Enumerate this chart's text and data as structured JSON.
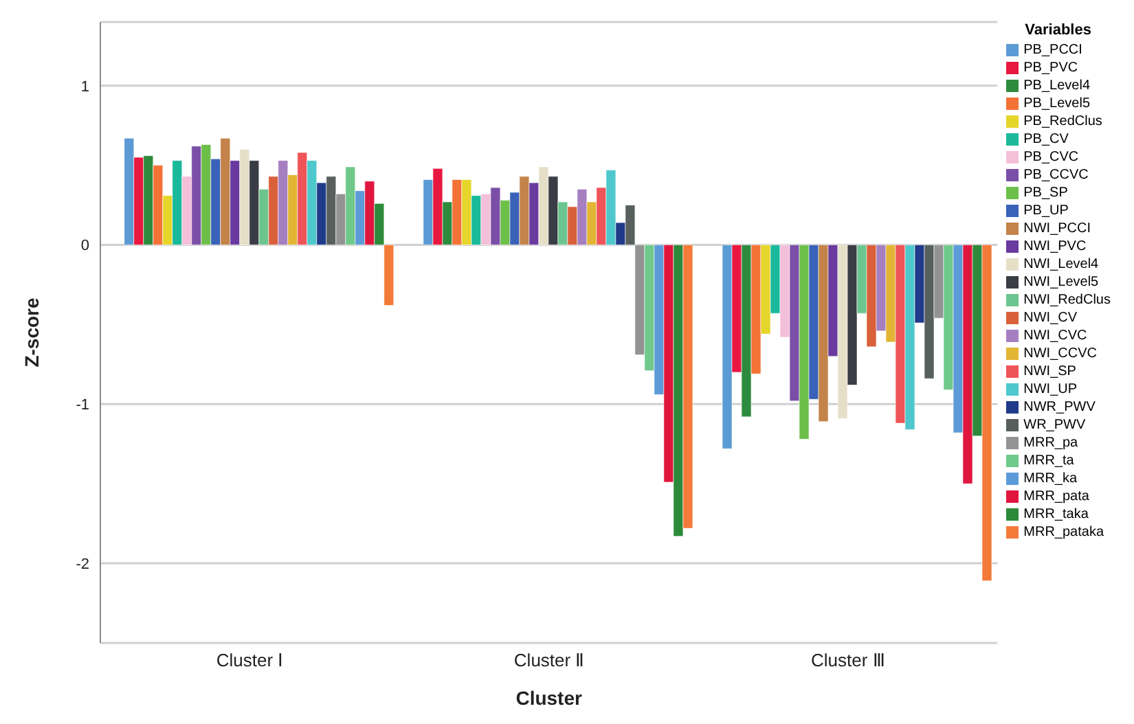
{
  "chart_data": {
    "type": "bar",
    "xlabel": "Cluster",
    "ylabel": "Z-score",
    "legend_title": "Variables",
    "categories": [
      "Cluster Ⅰ",
      "Cluster Ⅱ",
      "Cluster Ⅲ"
    ],
    "ylim": [
      -2.5,
      1.4
    ],
    "yticks": [
      -2,
      -1,
      0,
      1
    ],
    "grid": "y",
    "legend": "right",
    "series": [
      {
        "name": "PB_PCCI",
        "color": "#5b9bd5",
        "values": [
          0.67,
          0.41,
          -1.28
        ]
      },
      {
        "name": "PB_PVC",
        "color": "#e8173f",
        "values": [
          0.55,
          0.48,
          -0.8
        ]
      },
      {
        "name": "PB_Level4",
        "color": "#2e8b3e",
        "values": [
          0.56,
          0.27,
          -1.08
        ]
      },
      {
        "name": "PB_Level5",
        "color": "#f47236",
        "values": [
          0.5,
          0.41,
          -0.81
        ]
      },
      {
        "name": "PB_RedClus",
        "color": "#e6d52a",
        "values": [
          0.31,
          0.41,
          -0.56
        ]
      },
      {
        "name": "PB_CV",
        "color": "#1ab99b",
        "values": [
          0.53,
          0.31,
          -0.43
        ]
      },
      {
        "name": "PB_CVC",
        "color": "#f4bfd9",
        "values": [
          0.43,
          0.32,
          -0.58
        ]
      },
      {
        "name": "PB_CCVC",
        "color": "#7b4fa8",
        "values": [
          0.62,
          0.36,
          -0.98
        ]
      },
      {
        "name": "PB_SP",
        "color": "#6cc04a",
        "values": [
          0.63,
          0.28,
          -1.22
        ]
      },
      {
        "name": "PB_UP",
        "color": "#3a62b8",
        "values": [
          0.54,
          0.33,
          -0.97
        ]
      },
      {
        "name": "NWI_PCCI",
        "color": "#c4834a",
        "values": [
          0.67,
          0.43,
          -1.11
        ]
      },
      {
        "name": "NWI_PVC",
        "color": "#6a3a9e",
        "values": [
          0.53,
          0.39,
          -0.7
        ]
      },
      {
        "name": "NWI_Level4",
        "color": "#e6dfc8",
        "values": [
          0.6,
          0.49,
          -1.09
        ]
      },
      {
        "name": "NWI_Level5",
        "color": "#3a3d45",
        "values": [
          0.53,
          0.43,
          -0.88
        ]
      },
      {
        "name": "NWI_RedClus",
        "color": "#6cc58e",
        "values": [
          0.35,
          0.27,
          -0.43
        ]
      },
      {
        "name": "NWI_CV",
        "color": "#d9603b",
        "values": [
          0.43,
          0.24,
          -0.64
        ]
      },
      {
        "name": "NWI_CVC",
        "color": "#a67fc1",
        "values": [
          0.53,
          0.35,
          -0.54
        ]
      },
      {
        "name": "NWI_CCVC",
        "color": "#e2b534",
        "values": [
          0.44,
          0.27,
          -0.61
        ]
      },
      {
        "name": "NWI_SP",
        "color": "#ef5458",
        "values": [
          0.58,
          0.36,
          -1.12
        ]
      },
      {
        "name": "NWI_UP",
        "color": "#4ec8cc",
        "values": [
          0.53,
          0.47,
          -1.16
        ]
      },
      {
        "name": "NWR_PWV",
        "color": "#1f3a8a",
        "values": [
          0.39,
          0.14,
          -0.49
        ]
      },
      {
        "name": "WR_PWV",
        "color": "#58605e",
        "values": [
          0.43,
          0.25,
          -0.84
        ]
      },
      {
        "name": "MRR_pa",
        "color": "#939393",
        "values": [
          0.32,
          -0.69,
          -0.46
        ]
      },
      {
        "name": "MRR_ta",
        "color": "#6fc98a",
        "values": [
          0.49,
          -0.79,
          -0.91
        ]
      },
      {
        "name": "MRR_ka",
        "color": "#5c9bd8",
        "values": [
          0.34,
          -0.94,
          -1.18
        ]
      },
      {
        "name": "MRR_pata",
        "color": "#e0163e",
        "values": [
          0.4,
          -1.49,
          -1.5
        ]
      },
      {
        "name": "MRR_taka",
        "color": "#2c8a3a",
        "values": [
          0.26,
          -1.83,
          -1.2
        ]
      },
      {
        "name": "MRR_pataka",
        "color": "#f47a3a",
        "values": [
          -0.38,
          -1.78,
          -2.11
        ]
      }
    ]
  }
}
